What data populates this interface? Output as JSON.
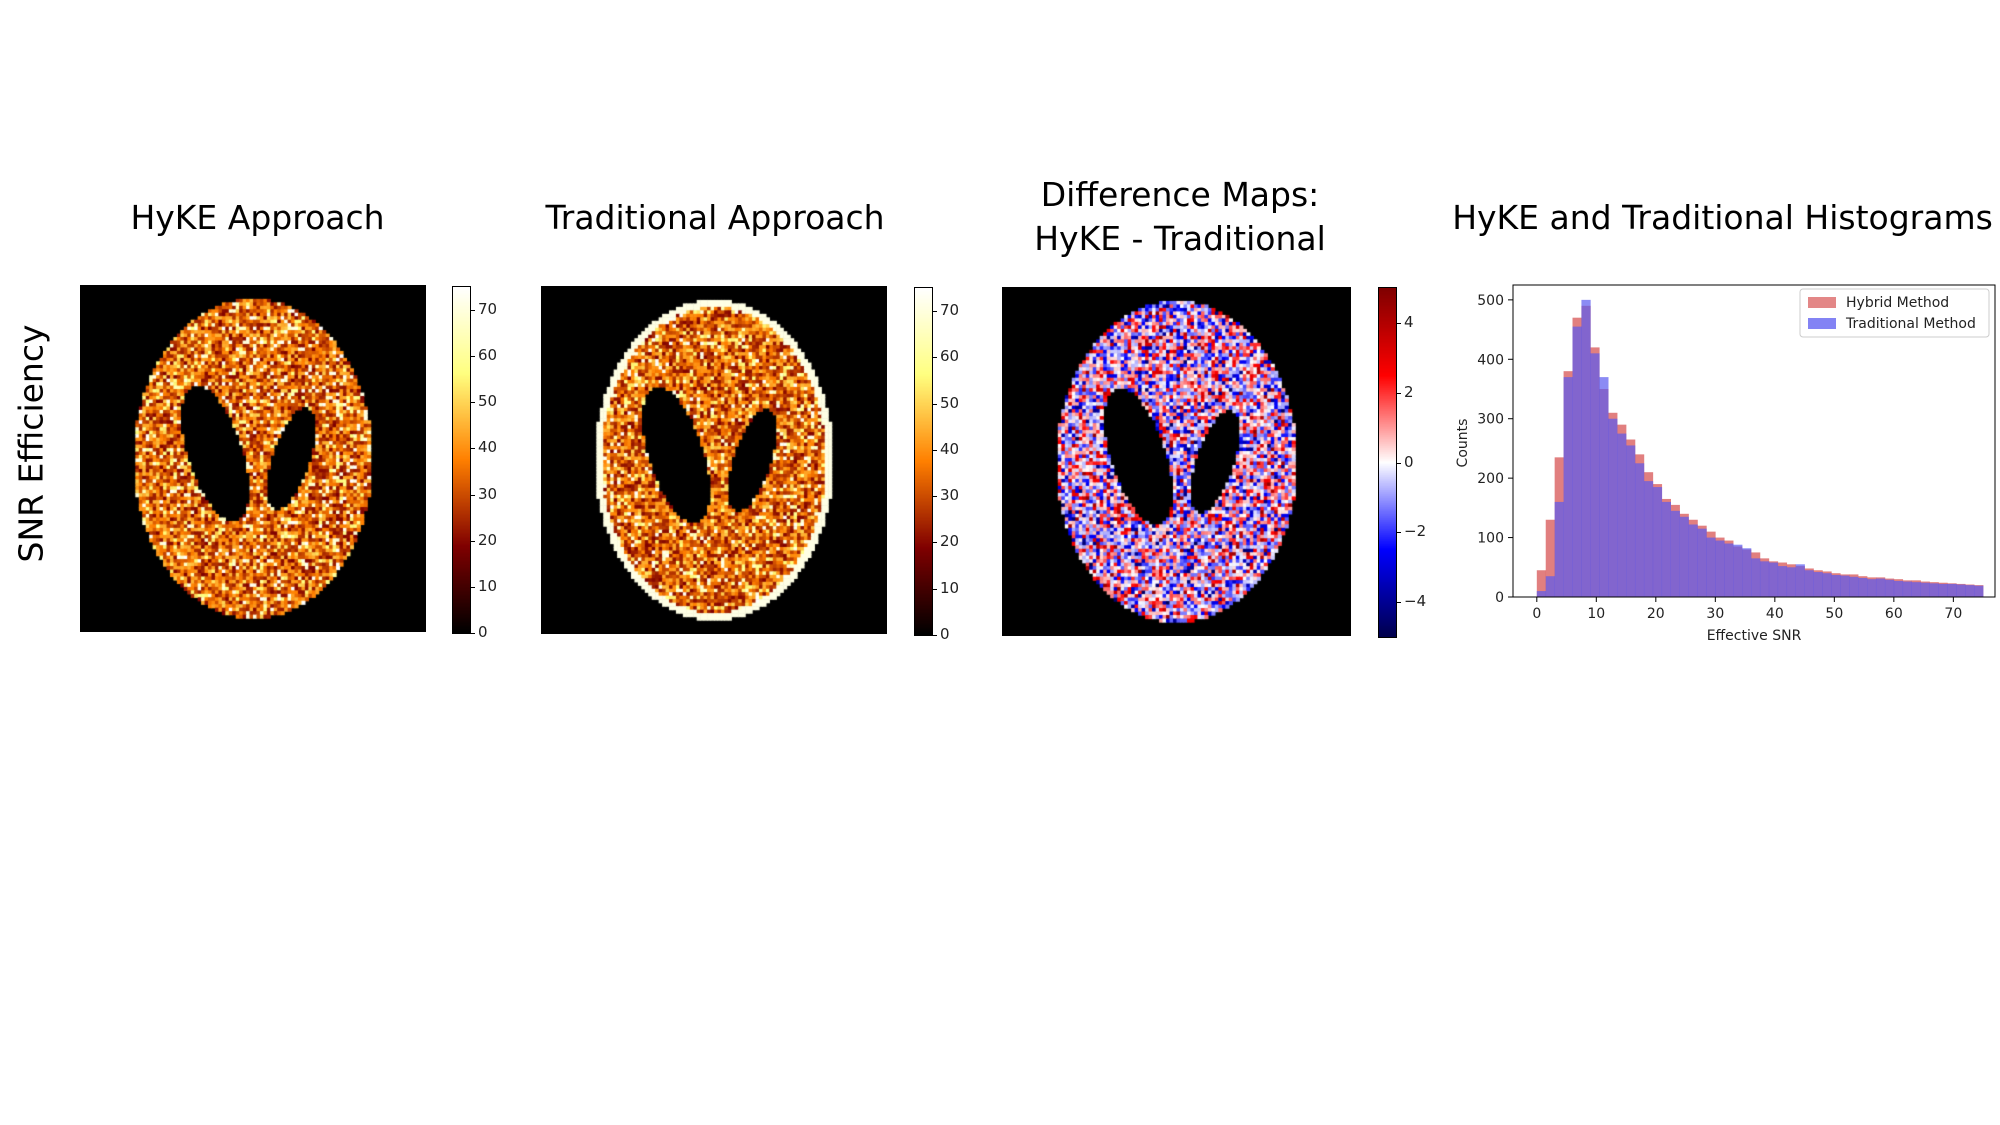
{
  "figure": {
    "row_label": "SNR Efficiency",
    "panel_titles": {
      "hyke": "HyKE Approach",
      "traditional": "Traditional Approach",
      "difference_line1": "Difference Maps:",
      "difference_line2": "HyKE - Traditional",
      "histogram": "HyKE and Traditional Histograms"
    }
  },
  "chart_data": [
    {
      "type": "heatmap",
      "name": "HyKE Approach",
      "colormap": "afmhot",
      "colorbar": {
        "range": [
          0,
          75
        ],
        "ticks": [
          "0",
          "10",
          "20",
          "30",
          "40",
          "50",
          "60",
          "70"
        ]
      }
    },
    {
      "type": "heatmap",
      "name": "Traditional Approach",
      "colormap": "afmhot",
      "colorbar": {
        "range": [
          0,
          75
        ],
        "ticks": [
          "0",
          "10",
          "20",
          "30",
          "40",
          "50",
          "60",
          "70"
        ]
      }
    },
    {
      "type": "heatmap",
      "name": "Difference Maps: HyKE - Traditional",
      "colormap": "seismic",
      "colorbar": {
        "range": [
          -5,
          5
        ],
        "ticks": [
          "−4",
          "−2",
          "0",
          "2",
          "4"
        ]
      }
    },
    {
      "type": "bar",
      "subtype": "histogram",
      "xlabel": "Effective SNR",
      "ylabel": "Counts",
      "xlim": [
        -4,
        77
      ],
      "ylim": [
        0,
        525
      ],
      "xticks": [
        "0",
        "10",
        "20",
        "30",
        "40",
        "50",
        "60",
        "70"
      ],
      "yticks": [
        "0",
        "100",
        "200",
        "300",
        "400",
        "500"
      ],
      "legend_position": "top-right",
      "bin_width": 1.5,
      "x": [
        0,
        1.5,
        3,
        4.5,
        6,
        7.5,
        9,
        10.5,
        12,
        13.5,
        15,
        16.5,
        18,
        19.5,
        21,
        22.5,
        24,
        25.5,
        27,
        28.5,
        30,
        31.5,
        33,
        34.5,
        36,
        37.5,
        39,
        40.5,
        42,
        43.5,
        45,
        46.5,
        48,
        49.5,
        51,
        52.5,
        54,
        55.5,
        57,
        58.5,
        60,
        61.5,
        63,
        64.5,
        66,
        67.5,
        69,
        70.5,
        72,
        73.5
      ],
      "series": [
        {
          "name": "Hybrid Method",
          "color": "#d95f5f",
          "values": [
            45,
            130,
            235,
            380,
            470,
            490,
            420,
            350,
            310,
            290,
            265,
            240,
            210,
            190,
            165,
            155,
            140,
            130,
            120,
            110,
            100,
            95,
            85,
            80,
            75,
            65,
            60,
            58,
            55,
            52,
            48,
            45,
            43,
            40,
            38,
            38,
            35,
            33,
            33,
            31,
            30,
            28,
            28,
            26,
            25,
            24,
            23,
            22,
            21,
            20
          ]
        },
        {
          "name": "Traditional Method",
          "color": "#5a5af0",
          "values": [
            10,
            35,
            160,
            370,
            455,
            500,
            410,
            370,
            300,
            275,
            255,
            225,
            195,
            185,
            160,
            145,
            135,
            122,
            115,
            100,
            95,
            90,
            88,
            82,
            65,
            60,
            58,
            52,
            50,
            55,
            45,
            42,
            40,
            37,
            36,
            34,
            32,
            30,
            31,
            29,
            27,
            26,
            25,
            24,
            23,
            22,
            22,
            21,
            20,
            19
          ]
        }
      ]
    }
  ]
}
